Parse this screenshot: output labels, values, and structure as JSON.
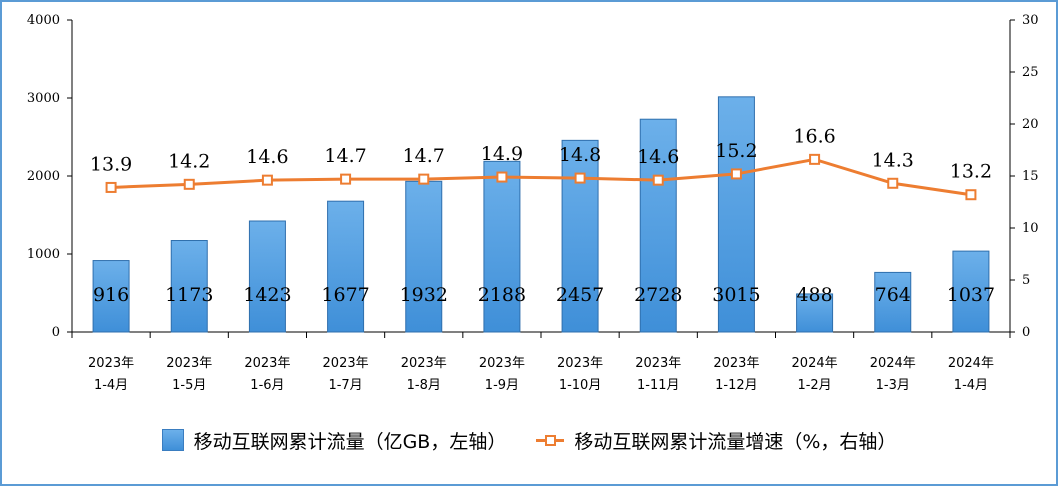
{
  "chart_data": {
    "type": "bar",
    "categories": [
      [
        "2023年",
        "1-4月"
      ],
      [
        "2023年",
        "1-5月"
      ],
      [
        "2023年",
        "1-6月"
      ],
      [
        "2023年",
        "1-7月"
      ],
      [
        "2023年",
        "1-8月"
      ],
      [
        "2023年",
        "1-9月"
      ],
      [
        "2023年",
        "1-10月"
      ],
      [
        "2023年",
        "1-11月"
      ],
      [
        "2023年",
        "1-12月"
      ],
      [
        "2024年",
        "1-2月"
      ],
      [
        "2024年",
        "1-3月"
      ],
      [
        "2024年",
        "1-4月"
      ]
    ],
    "series": [
      {
        "name": "移动互联网累计流量（亿GB，左轴）",
        "type": "bar",
        "axis": "left",
        "values": [
          916,
          1173,
          1423,
          1677,
          1932,
          2188,
          2457,
          2728,
          3015,
          488,
          764,
          1037
        ],
        "color": "#5b9bd5"
      },
      {
        "name": "移动互联网累计流量增速（%，右轴）",
        "type": "line",
        "axis": "right",
        "values": [
          13.9,
          14.2,
          14.6,
          14.7,
          14.7,
          14.9,
          14.8,
          14.6,
          15.2,
          16.6,
          14.3,
          13.2
        ],
        "color": "#ed7d31"
      }
    ],
    "left_axis": {
      "min": 0,
      "max": 4000,
      "ticks": [
        0,
        1000,
        2000,
        3000,
        4000
      ]
    },
    "right_axis": {
      "min": 0,
      "max": 30,
      "ticks": [
        0,
        5,
        10,
        15,
        20,
        25,
        30
      ]
    },
    "grid": false,
    "legend_position": "bottom"
  }
}
